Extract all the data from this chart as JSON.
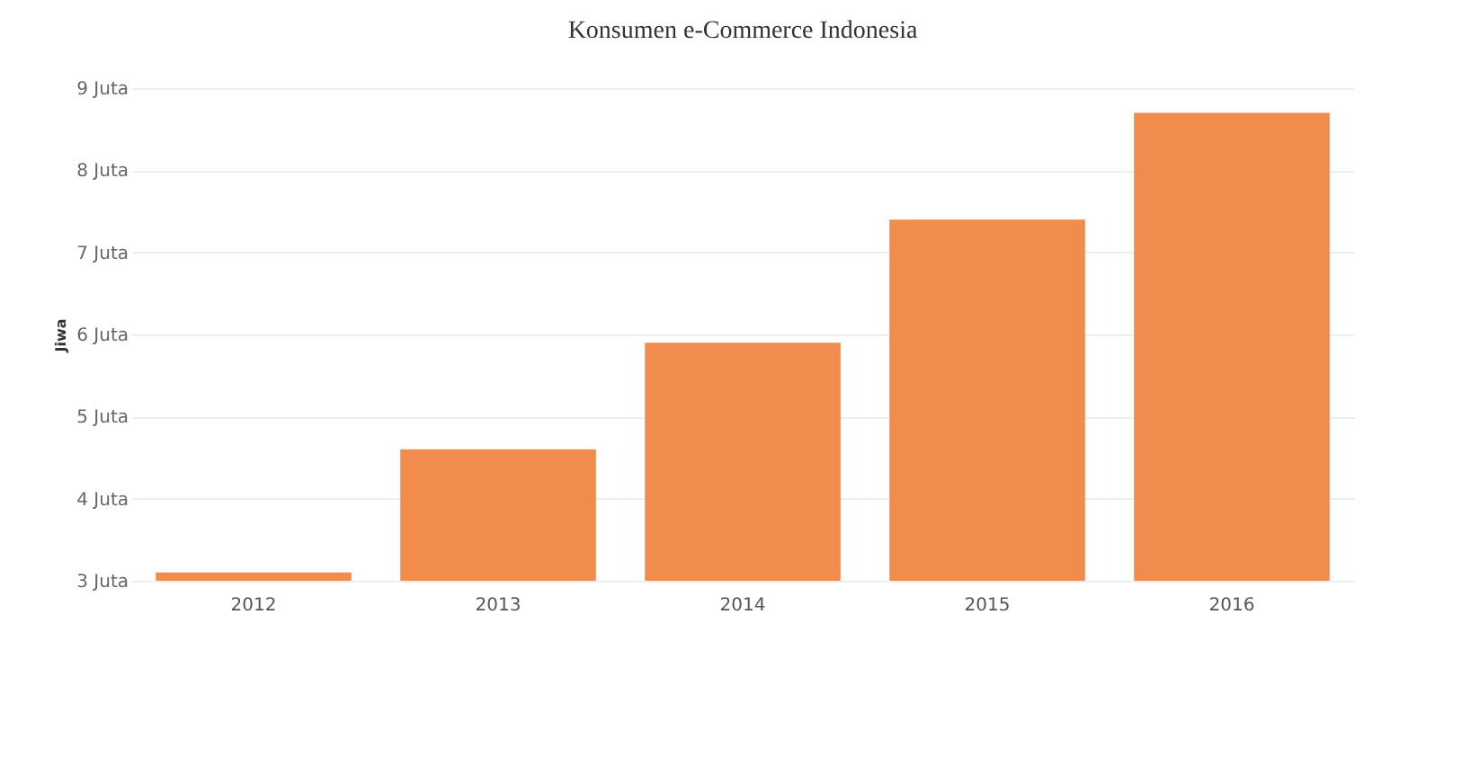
{
  "chart_data": {
    "type": "bar",
    "title": "Konsumen e-Commerce Indonesia",
    "ylabel": "Jiwa",
    "categories": [
      "2012",
      "2013",
      "2014",
      "2015",
      "2016"
    ],
    "values": [
      3.1,
      4.6,
      5.9,
      7.4,
      8.7
    ],
    "color": "#f28c4e",
    "ylim": [
      3,
      9
    ],
    "yticks": [
      {
        "value": 3,
        "label": "3 Juta"
      },
      {
        "value": 4,
        "label": "4 Juta"
      },
      {
        "value": 5,
        "label": "5 Juta"
      },
      {
        "value": 6,
        "label": "6 Juta"
      },
      {
        "value": 7,
        "label": "7 Juta"
      },
      {
        "value": 8,
        "label": "8 Juta"
      },
      {
        "value": 9,
        "label": "9 Juta"
      }
    ],
    "grid": "y"
  }
}
